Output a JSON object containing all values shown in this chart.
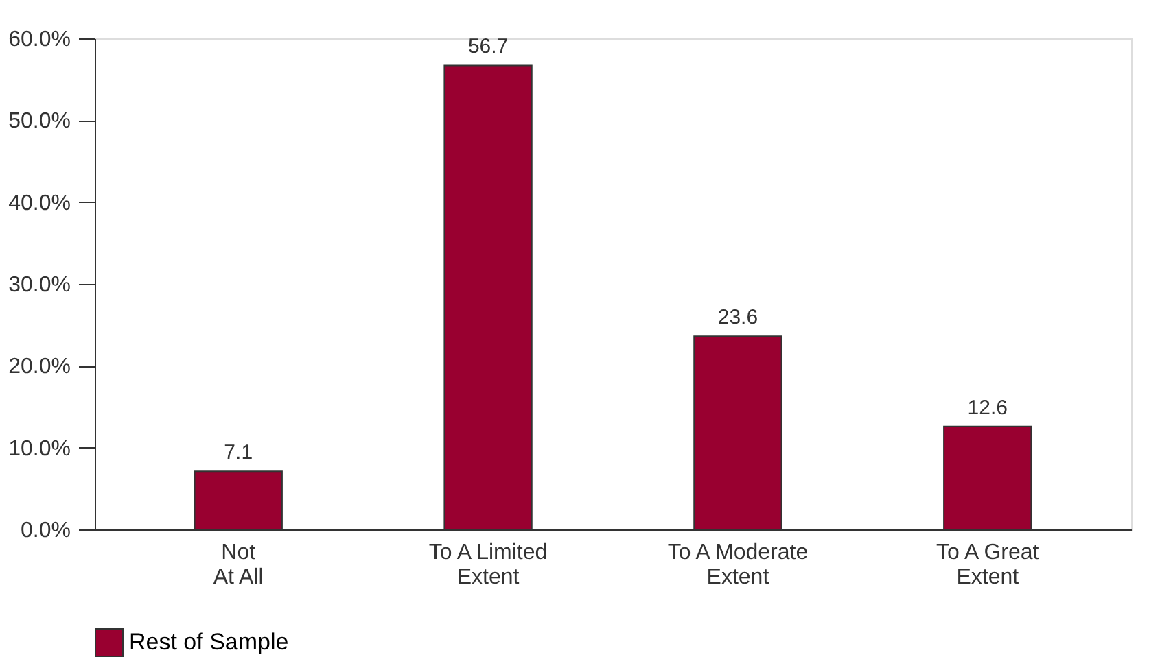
{
  "chart_data": {
    "type": "bar",
    "categories": [
      "Not\nAt All",
      "To A Limited\nExtent",
      "To A Moderate\nExtent",
      "To A Great\nExtent"
    ],
    "series": [
      {
        "name": "Rest of Sample",
        "color": "#990030",
        "values": [
          7.1,
          56.7,
          23.6,
          12.6
        ]
      }
    ],
    "ylim": [
      0,
      60
    ],
    "yticks": [
      {
        "value": 0,
        "label": "0.0%"
      },
      {
        "value": 10,
        "label": "10.0%"
      },
      {
        "value": 20,
        "label": "20.0%"
      },
      {
        "value": 30,
        "label": "30.0%"
      },
      {
        "value": 40,
        "label": "40.0%"
      },
      {
        "value": 50,
        "label": "50.0%"
      },
      {
        "value": 60,
        "label": "60.0%"
      }
    ],
    "data_labels": true,
    "legend": "bottom",
    "grid": false
  }
}
